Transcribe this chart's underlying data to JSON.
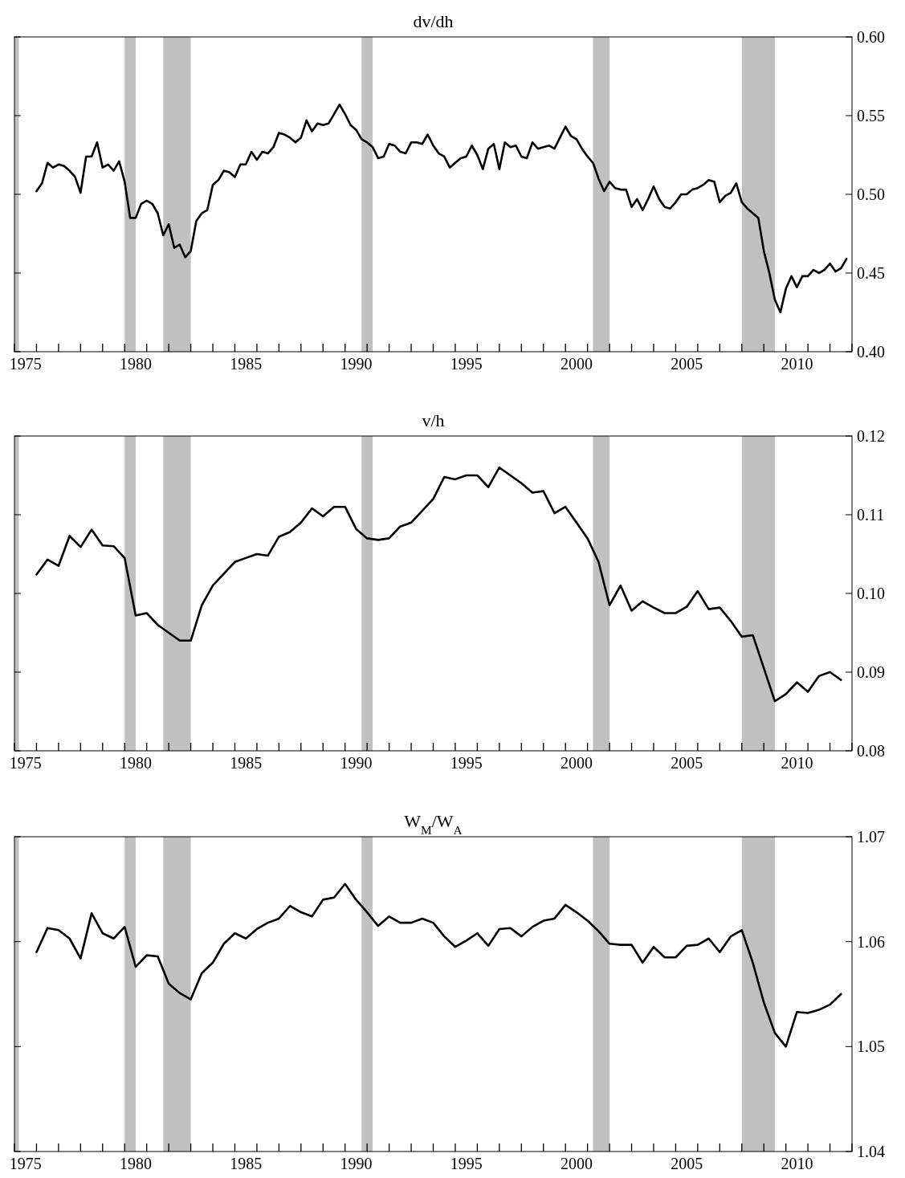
{
  "chart_data": [
    {
      "type": "line",
      "title": "dv/dh",
      "xlim": [
        1975,
        2013
      ],
      "ylim": [
        0.4,
        0.6
      ],
      "yticks": [
        {
          "value": 0.4,
          "label": "0.40"
        },
        0.45,
        {
          "value": 0.5,
          "label": "0.50"
        },
        0.55,
        {
          "value": 0.6,
          "label": "0.60"
        }
      ],
      "xticks": [
        {
          "value": 1975.5,
          "label": "1975"
        },
        {
          "value": 1980.5,
          "label": "1980"
        },
        {
          "value": 1985.5,
          "label": "1985"
        },
        {
          "value": 1990.5,
          "label": "1990"
        },
        {
          "value": 1995.5,
          "label": "1995"
        },
        {
          "value": 2000.5,
          "label": "2000"
        },
        {
          "value": 2005.5,
          "label": "2005"
        },
        {
          "value": 2010.5,
          "label": "2010"
        },
        {
          "value": 1975,
          "label": null
        },
        {
          "value": 1976,
          "label": null
        },
        {
          "value": 1977,
          "label": null
        },
        {
          "value": 1978,
          "label": null
        },
        {
          "value": 1979,
          "label": null
        },
        {
          "value": 1980,
          "label": null
        },
        {
          "value": 1981,
          "label": null
        },
        {
          "value": 1982,
          "label": null
        },
        {
          "value": 1983,
          "label": null
        },
        {
          "value": 1984,
          "label": null
        },
        {
          "value": 1985,
          "label": null
        },
        {
          "value": 1986,
          "label": null
        },
        {
          "value": 1987,
          "label": null
        },
        {
          "value": 1988,
          "label": null
        },
        {
          "value": 1989,
          "label": null
        },
        {
          "value": 1990,
          "label": null
        },
        {
          "value": 1991,
          "label": null
        },
        {
          "value": 1992,
          "label": null
        },
        {
          "value": 1993,
          "label": null
        },
        {
          "value": 1994,
          "label": null
        },
        {
          "value": 1995,
          "label": null
        },
        {
          "value": 1996,
          "label": null
        },
        {
          "value": 1997,
          "label": null
        },
        {
          "value": 1998,
          "label": null
        },
        {
          "value": 1999,
          "label": null
        },
        {
          "value": 2000,
          "label": null
        },
        {
          "value": 2001,
          "label": null
        },
        {
          "value": 2002,
          "label": null
        },
        {
          "value": 2003,
          "label": null
        },
        {
          "value": 2004,
          "label": null
        },
        {
          "value": 2005,
          "label": null
        },
        {
          "value": 2006,
          "label": null
        },
        {
          "value": 2007,
          "label": null
        },
        {
          "value": 2008,
          "label": null
        },
        {
          "value": 2009,
          "label": null
        },
        {
          "value": 2010,
          "label": null
        },
        {
          "value": 2011,
          "label": null
        },
        {
          "value": 2012,
          "label": null
        },
        {
          "value": 2013,
          "label": null
        }
      ],
      "bands": [
        {
          "axis": "x",
          "from": 1975.0,
          "to": 1975.2,
          "color": "#c0c0c0"
        },
        {
          "axis": "x",
          "from": 1980.0,
          "to": 1980.5,
          "color": "#c0c0c0"
        },
        {
          "axis": "x",
          "from": 1981.75,
          "to": 1983.0,
          "color": "#c0c0c0"
        },
        {
          "axis": "x",
          "from": 1990.75,
          "to": 1991.25,
          "color": "#c0c0c0"
        },
        {
          "axis": "x",
          "from": 2001.25,
          "to": 2002.0,
          "color": "#c0c0c0"
        },
        {
          "axis": "x",
          "from": 2008.0,
          "to": 2009.5,
          "color": "#c0c0c0"
        }
      ],
      "x": [
        1976,
        1976.25,
        1976.5,
        1976.75,
        1977,
        1977.25,
        1977.5,
        1977.75,
        1978,
        1978.25,
        1978.5,
        1978.75,
        1979,
        1979.25,
        1979.5,
        1979.75,
        1980,
        1980.25,
        1980.5,
        1980.75,
        1981,
        1981.25,
        1981.5,
        1981.75,
        1982,
        1982.25,
        1982.5,
        1982.75,
        1983,
        1983.25,
        1983.5,
        1983.75,
        1984,
        1984.25,
        1984.5,
        1984.75,
        1985,
        1985.25,
        1985.5,
        1985.75,
        1986,
        1986.25,
        1986.5,
        1986.75,
        1987,
        1987.25,
        1987.5,
        1987.75,
        1988,
        1988.25,
        1988.5,
        1988.75,
        1989,
        1989.25,
        1989.5,
        1989.75,
        1990,
        1990.25,
        1990.5,
        1990.75,
        1991,
        1991.25,
        1991.5,
        1991.75,
        1992,
        1992.25,
        1992.5,
        1992.75,
        1993,
        1993.25,
        1993.5,
        1993.75,
        1994,
        1994.25,
        1994.5,
        1994.75,
        1995,
        1995.25,
        1995.5,
        1995.75,
        1996,
        1996.25,
        1996.5,
        1996.75,
        1997,
        1997.25,
        1997.5,
        1997.75,
        1998,
        1998.25,
        1998.5,
        1998.75,
        1999,
        1999.25,
        1999.5,
        1999.75,
        2000,
        2000.25,
        2000.5,
        2000.75,
        2001,
        2001.25,
        2001.5,
        2001.75,
        2002,
        2002.25,
        2002.5,
        2002.75,
        2003,
        2003.25,
        2003.5,
        2003.75,
        2004,
        2004.25,
        2004.5,
        2004.75,
        2005,
        2005.25,
        2005.5,
        2005.75,
        2006,
        2006.25,
        2006.5,
        2006.75,
        2007,
        2007.25,
        2007.5,
        2007.75,
        2008,
        2008.25,
        2008.5,
        2008.75,
        2009,
        2009.25,
        2009.5,
        2009.75,
        2010,
        2010.25,
        2010.5,
        2010.75,
        2011,
        2011.25,
        2011.5,
        2011.75,
        2012,
        2012.25,
        2012.5,
        2012.75
      ],
      "series": [
        {
          "color": "#000000",
          "values": [
            0.502,
            0.507,
            0.52,
            0.517,
            0.519,
            0.518,
            0.515,
            0.511,
            0.501,
            0.524,
            0.524,
            0.533,
            0.517,
            0.519,
            0.515,
            0.521,
            0.508,
            0.485,
            0.485,
            0.494,
            0.496,
            0.494,
            0.488,
            0.474,
            0.481,
            0.466,
            0.468,
            0.46,
            0.464,
            0.483,
            0.488,
            0.49,
            0.506,
            0.509,
            0.515,
            0.514,
            0.511,
            0.519,
            0.519,
            0.527,
            0.522,
            0.527,
            0.526,
            0.53,
            0.539,
            0.538,
            0.536,
            0.533,
            0.536,
            0.547,
            0.54,
            0.545,
            0.544,
            0.545,
            0.551,
            0.557,
            0.551,
            0.544,
            0.541,
            0.535,
            0.533,
            0.53,
            0.523,
            0.524,
            0.532,
            0.531,
            0.527,
            0.526,
            0.533,
            0.533,
            0.532,
            0.538,
            0.531,
            0.526,
            0.524,
            0.517,
            0.52,
            0.523,
            0.524,
            0.531,
            0.525,
            0.516,
            0.529,
            0.532,
            0.516,
            0.533,
            0.53,
            0.531,
            0.524,
            0.523,
            0.533,
            0.529,
            0.53,
            0.531,
            0.529,
            0.536,
            0.543,
            0.537,
            0.535,
            0.529,
            0.524,
            0.52,
            0.51,
            0.502,
            0.508,
            0.504,
            0.503,
            0.503,
            0.492,
            0.497,
            0.49,
            0.497,
            0.505,
            0.497,
            0.492,
            0.491,
            0.495,
            0.5,
            0.5,
            0.503,
            0.504,
            0.506,
            0.509,
            0.508,
            0.495,
            0.499,
            0.501,
            0.507,
            0.495,
            0.491,
            0.488,
            0.485,
            0.464,
            0.45,
            0.433,
            0.425,
            0.44,
            0.448,
            0.441,
            0.448,
            0.448,
            0.452,
            0.45,
            0.452,
            0.456,
            0.451,
            0.453,
            0.459
          ]
        }
      ]
    },
    {
      "type": "line",
      "title": "v/h",
      "xlim": [
        1975,
        2013
      ],
      "ylim": [
        0.08,
        0.12
      ],
      "yticks": [
        0.08,
        0.09,
        {
          "value": 0.1,
          "label": "0.10"
        },
        0.11,
        0.12
      ],
      "xticks": [
        {
          "value": 1975.5,
          "label": "1975"
        },
        {
          "value": 1980.5,
          "label": "1980"
        },
        {
          "value": 1985.5,
          "label": "1985"
        },
        {
          "value": 1990.5,
          "label": "1990"
        },
        {
          "value": 1995.5,
          "label": "1995"
        },
        {
          "value": 2000.5,
          "label": "2000"
        },
        {
          "value": 2005.5,
          "label": "2005"
        },
        {
          "value": 2010.5,
          "label": "2010"
        },
        {
          "value": 1975,
          "label": null
        },
        {
          "value": 1976,
          "label": null
        },
        {
          "value": 1977,
          "label": null
        },
        {
          "value": 1978,
          "label": null
        },
        {
          "value": 1979,
          "label": null
        },
        {
          "value": 1980,
          "label": null
        },
        {
          "value": 1981,
          "label": null
        },
        {
          "value": 1982,
          "label": null
        },
        {
          "value": 1983,
          "label": null
        },
        {
          "value": 1984,
          "label": null
        },
        {
          "value": 1985,
          "label": null
        },
        {
          "value": 1986,
          "label": null
        },
        {
          "value": 1987,
          "label": null
        },
        {
          "value": 1988,
          "label": null
        },
        {
          "value": 1989,
          "label": null
        },
        {
          "value": 1990,
          "label": null
        },
        {
          "value": 1991,
          "label": null
        },
        {
          "value": 1992,
          "label": null
        },
        {
          "value": 1993,
          "label": null
        },
        {
          "value": 1994,
          "label": null
        },
        {
          "value": 1995,
          "label": null
        },
        {
          "value": 1996,
          "label": null
        },
        {
          "value": 1997,
          "label": null
        },
        {
          "value": 1998,
          "label": null
        },
        {
          "value": 1999,
          "label": null
        },
        {
          "value": 2000,
          "label": null
        },
        {
          "value": 2001,
          "label": null
        },
        {
          "value": 2002,
          "label": null
        },
        {
          "value": 2003,
          "label": null
        },
        {
          "value": 2004,
          "label": null
        },
        {
          "value": 2005,
          "label": null
        },
        {
          "value": 2006,
          "label": null
        },
        {
          "value": 2007,
          "label": null
        },
        {
          "value": 2008,
          "label": null
        },
        {
          "value": 2009,
          "label": null
        },
        {
          "value": 2010,
          "label": null
        },
        {
          "value": 2011,
          "label": null
        },
        {
          "value": 2012,
          "label": null
        },
        {
          "value": 2013,
          "label": null
        }
      ],
      "bands": [
        {
          "axis": "x",
          "from": 1975.0,
          "to": 1975.2,
          "color": "#c0c0c0"
        },
        {
          "axis": "x",
          "from": 1980.0,
          "to": 1980.5,
          "color": "#c0c0c0"
        },
        {
          "axis": "x",
          "from": 1981.75,
          "to": 1983.0,
          "color": "#c0c0c0"
        },
        {
          "axis": "x",
          "from": 1990.75,
          "to": 1991.25,
          "color": "#c0c0c0"
        },
        {
          "axis": "x",
          "from": 2001.25,
          "to": 2002.0,
          "color": "#c0c0c0"
        },
        {
          "axis": "x",
          "from": 2008.0,
          "to": 2009.5,
          "color": "#c0c0c0"
        }
      ],
      "x": [
        1976,
        1976.5,
        1977,
        1977.5,
        1978,
        1978.5,
        1979,
        1979.5,
        1980,
        1980.5,
        1981,
        1981.5,
        1982,
        1982.5,
        1983,
        1983.5,
        1984,
        1984.5,
        1985,
        1985.5,
        1986,
        1986.5,
        1987,
        1987.5,
        1988,
        1988.5,
        1989,
        1989.5,
        1990,
        1990.5,
        1991,
        1991.5,
        1992,
        1992.5,
        1993,
        1993.5,
        1994,
        1994.5,
        1995,
        1995.5,
        1996,
        1996.5,
        1997,
        1997.5,
        1998,
        1998.5,
        1999,
        1999.5,
        2000,
        2000.5,
        2001,
        2001.5,
        2002,
        2002.5,
        2003,
        2003.5,
        2004,
        2004.5,
        2005,
        2005.5,
        2006,
        2006.5,
        2007,
        2007.5,
        2008,
        2008.5,
        2009,
        2009.5,
        2010,
        2010.5,
        2011,
        2011.5,
        2012,
        2012.5
      ],
      "series": [
        {
          "color": "#000000",
          "values": [
            0.1024,
            0.1043,
            0.1035,
            0.1073,
            0.1059,
            0.1081,
            0.1061,
            0.106,
            0.1045,
            0.0972,
            0.0975,
            0.096,
            0.095,
            0.094,
            0.094,
            0.0985,
            0.101,
            0.1025,
            0.104,
            0.1045,
            0.105,
            0.1048,
            0.1072,
            0.1078,
            0.109,
            0.1108,
            0.1098,
            0.111,
            0.111,
            0.1082,
            0.107,
            0.1068,
            0.107,
            0.1085,
            0.109,
            0.1105,
            0.112,
            0.1148,
            0.1145,
            0.115,
            0.115,
            0.1135,
            0.116,
            0.115,
            0.114,
            0.1128,
            0.113,
            0.1102,
            0.111,
            0.109,
            0.107,
            0.104,
            0.0985,
            0.101,
            0.0978,
            0.099,
            0.0982,
            0.0975,
            0.0975,
            0.0983,
            0.1003,
            0.098,
            0.0982,
            0.0965,
            0.0945,
            0.0947,
            0.0905,
            0.0863,
            0.0872,
            0.0887,
            0.0875,
            0.0895,
            0.09,
            0.089
          ]
        }
      ]
    },
    {
      "type": "line",
      "title": "W$_{M}$/W$_{A}$",
      "xlim": [
        1975,
        2013
      ],
      "ylim": [
        1.04,
        1.07
      ],
      "yticks": [
        1.04,
        1.05,
        1.06,
        1.07
      ],
      "xticks": [
        {
          "value": 1975.5,
          "label": "1975"
        },
        {
          "value": 1980.5,
          "label": "1980"
        },
        {
          "value": 1985.5,
          "label": "1985"
        },
        {
          "value": 1990.5,
          "label": "1990"
        },
        {
          "value": 1995.5,
          "label": "1995"
        },
        {
          "value": 2000.5,
          "label": "2000"
        },
        {
          "value": 2005.5,
          "label": "2005"
        },
        {
          "value": 2010.5,
          "label": "2010"
        },
        {
          "value": 1975,
          "label": null
        },
        {
          "value": 1976,
          "label": null
        },
        {
          "value": 1977,
          "label": null
        },
        {
          "value": 1978,
          "label": null
        },
        {
          "value": 1979,
          "label": null
        },
        {
          "value": 1980,
          "label": null
        },
        {
          "value": 1981,
          "label": null
        },
        {
          "value": 1982,
          "label": null
        },
        {
          "value": 1983,
          "label": null
        },
        {
          "value": 1984,
          "label": null
        },
        {
          "value": 1985,
          "label": null
        },
        {
          "value": 1986,
          "label": null
        },
        {
          "value": 1987,
          "label": null
        },
        {
          "value": 1988,
          "label": null
        },
        {
          "value": 1989,
          "label": null
        },
        {
          "value": 1990,
          "label": null
        },
        {
          "value": 1991,
          "label": null
        },
        {
          "value": 1992,
          "label": null
        },
        {
          "value": 1993,
          "label": null
        },
        {
          "value": 1994,
          "label": null
        },
        {
          "value": 1995,
          "label": null
        },
        {
          "value": 1996,
          "label": null
        },
        {
          "value": 1997,
          "label": null
        },
        {
          "value": 1998,
          "label": null
        },
        {
          "value": 1999,
          "label": null
        },
        {
          "value": 2000,
          "label": null
        },
        {
          "value": 2001,
          "label": null
        },
        {
          "value": 2002,
          "label": null
        },
        {
          "value": 2003,
          "label": null
        },
        {
          "value": 2004,
          "label": null
        },
        {
          "value": 2005,
          "label": null
        },
        {
          "value": 2006,
          "label": null
        },
        {
          "value": 2007,
          "label": null
        },
        {
          "value": 2008,
          "label": null
        },
        {
          "value": 2009,
          "label": null
        },
        {
          "value": 2010,
          "label": null
        },
        {
          "value": 2011,
          "label": null
        },
        {
          "value": 2012,
          "label": null
        },
        {
          "value": 2013,
          "label": null
        }
      ],
      "bands": [
        {
          "axis": "x",
          "from": 1975.0,
          "to": 1975.2,
          "color": "#c0c0c0"
        },
        {
          "axis": "x",
          "from": 1980.0,
          "to": 1980.5,
          "color": "#c0c0c0"
        },
        {
          "axis": "x",
          "from": 1981.75,
          "to": 1983.0,
          "color": "#c0c0c0"
        },
        {
          "axis": "x",
          "from": 1990.75,
          "to": 1991.25,
          "color": "#c0c0c0"
        },
        {
          "axis": "x",
          "from": 2001.25,
          "to": 2002.0,
          "color": "#c0c0c0"
        },
        {
          "axis": "x",
          "from": 2008.0,
          "to": 2009.5,
          "color": "#c0c0c0"
        }
      ],
      "x": [
        1976,
        1976.5,
        1977,
        1977.5,
        1978,
        1978.5,
        1979,
        1979.5,
        1980,
        1980.5,
        1981,
        1981.5,
        1982,
        1982.5,
        1983,
        1983.5,
        1984,
        1984.5,
        1985,
        1985.5,
        1986,
        1986.5,
        1987,
        1987.5,
        1988,
        1988.5,
        1989,
        1989.5,
        1990,
        1990.5,
        1991,
        1991.5,
        1992,
        1992.5,
        1993,
        1993.5,
        1994,
        1994.5,
        1995,
        1995.5,
        1996,
        1996.5,
        1997,
        1997.5,
        1998,
        1998.5,
        1999,
        1999.5,
        2000,
        2000.5,
        2001,
        2001.5,
        2002,
        2002.5,
        2003,
        2003.5,
        2004,
        2004.5,
        2005,
        2005.5,
        2006,
        2006.5,
        2007,
        2007.5,
        2008,
        2008.5,
        2009,
        2009.5,
        2010,
        2010.5,
        2011,
        2011.5,
        2012,
        2012.5
      ],
      "series": [
        {
          "color": "#000000",
          "values": [
            1.059,
            1.0613,
            1.0611,
            1.0603,
            1.0584,
            1.0627,
            1.0608,
            1.0603,
            1.0614,
            1.0576,
            1.0587,
            1.0586,
            1.056,
            1.0551,
            1.0545,
            1.057,
            1.058,
            1.0598,
            1.0608,
            1.0603,
            1.0612,
            1.0618,
            1.0622,
            1.0634,
            1.0628,
            1.0624,
            1.064,
            1.0642,
            1.0655,
            1.064,
            1.0628,
            1.0615,
            1.0624,
            1.0618,
            1.0618,
            1.0622,
            1.0618,
            1.0605,
            1.0595,
            1.0601,
            1.0608,
            1.0596,
            1.0612,
            1.0613,
            1.0605,
            1.0614,
            1.062,
            1.0622,
            1.0635,
            1.0628,
            1.062,
            1.061,
            1.0598,
            1.0597,
            1.0597,
            1.058,
            1.0595,
            1.0585,
            1.0585,
            1.0596,
            1.0597,
            1.0603,
            1.059,
            1.0605,
            1.0611,
            1.058,
            1.0542,
            1.0513,
            1.05,
            1.0533,
            1.0532,
            1.0535,
            1.054,
            1.055
          ]
        }
      ]
    }
  ]
}
